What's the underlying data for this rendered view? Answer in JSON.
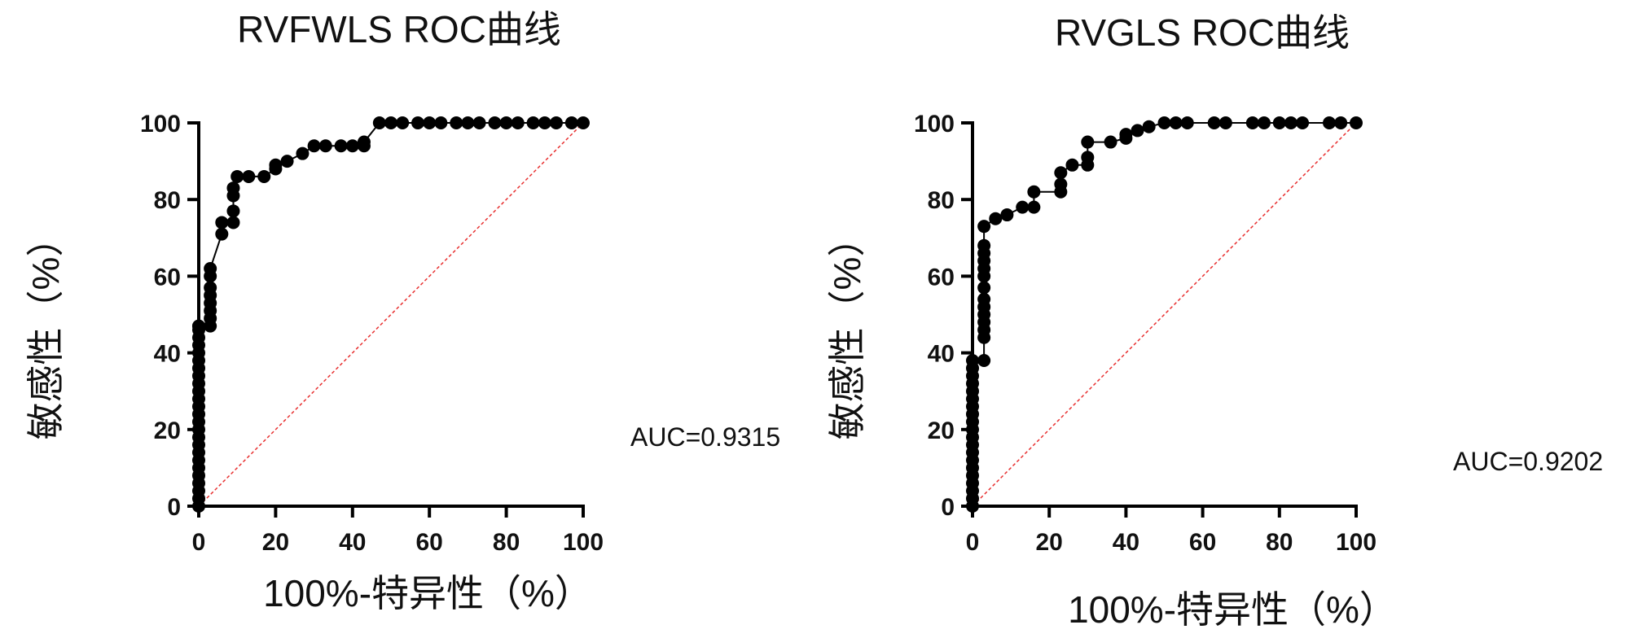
{
  "chart_data": [
    {
      "type": "scatter",
      "title": "RVFWLS ROC曲线",
      "xlabel": "100%-特异性（%）",
      "ylabel": "敏感性（%）",
      "xlim": [
        0,
        100
      ],
      "ylim": [
        0,
        100
      ],
      "xticks": [
        0,
        20,
        40,
        60,
        80,
        100
      ],
      "yticks": [
        0,
        20,
        40,
        60,
        80,
        100
      ],
      "annotation": "AUC=0.9315",
      "reference_line": [
        [
          0,
          0
        ],
        [
          100,
          100
        ]
      ],
      "x": [
        0,
        0,
        0,
        0,
        0,
        0,
        0,
        0,
        0,
        0,
        0,
        0,
        0,
        0,
        0,
        0,
        0,
        0,
        0,
        0,
        0,
        0,
        0,
        0,
        0,
        0,
        3,
        3,
        3,
        3,
        3,
        3,
        3,
        3,
        6,
        6,
        9,
        9,
        9,
        9,
        10,
        13,
        17,
        20,
        20,
        23,
        27,
        30,
        33,
        37,
        40,
        43,
        43,
        47,
        50,
        53,
        57,
        60,
        63,
        67,
        70,
        73,
        77,
        80,
        83,
        87,
        90,
        93,
        97,
        100
      ],
      "y": [
        0,
        2,
        4,
        6,
        8,
        10,
        12,
        14,
        16,
        18,
        20,
        22,
        24,
        26,
        28,
        30,
        32,
        34,
        36,
        38,
        40,
        42,
        44,
        46,
        47,
        47,
        47,
        49,
        51,
        53,
        55,
        57,
        60,
        62,
        71,
        74,
        74,
        77,
        81,
        83,
        86,
        86,
        86,
        88,
        89,
        90,
        92,
        94,
        94,
        94,
        94,
        94,
        95,
        100,
        100,
        100,
        100,
        100,
        100,
        100,
        100,
        100,
        100,
        100,
        100,
        100,
        100,
        100,
        100,
        100
      ]
    },
    {
      "type": "scatter",
      "title": "RVGLS ROC曲线",
      "xlabel": "100%-特异性（%）",
      "ylabel": "敏感性（%）",
      "xlim": [
        0,
        100
      ],
      "ylim": [
        0,
        100
      ],
      "xticks": [
        0,
        20,
        40,
        60,
        80,
        100
      ],
      "yticks": [
        0,
        20,
        40,
        60,
        80,
        100
      ],
      "annotation": "AUC=0.9202",
      "reference_line": [
        [
          0,
          0
        ],
        [
          100,
          100
        ]
      ],
      "x": [
        0,
        0,
        0,
        0,
        0,
        0,
        0,
        0,
        0,
        0,
        0,
        0,
        0,
        0,
        0,
        0,
        0,
        0,
        0,
        0,
        3,
        3,
        3,
        3,
        3,
        3,
        3,
        3,
        3,
        3,
        3,
        3,
        3,
        3,
        6,
        9,
        13,
        16,
        16,
        23,
        23,
        23,
        26,
        30,
        30,
        30,
        36,
        40,
        40,
        43,
        46,
        50,
        53,
        56,
        63,
        66,
        73,
        76,
        80,
        83,
        86,
        93,
        96,
        100
      ],
      "y": [
        0,
        2,
        4,
        6,
        8,
        10,
        12,
        14,
        16,
        18,
        20,
        22,
        24,
        26,
        28,
        30,
        32,
        34,
        36,
        38,
        38,
        44,
        46,
        48,
        50,
        52,
        54,
        57,
        60,
        62,
        64,
        66,
        68,
        73,
        75,
        76,
        78,
        78,
        82,
        82,
        84,
        87,
        89,
        89,
        91,
        95,
        95,
        96,
        97,
        98,
        99,
        100,
        100,
        100,
        100,
        100,
        100,
        100,
        100,
        100,
        100,
        100,
        100,
        100
      ]
    }
  ]
}
